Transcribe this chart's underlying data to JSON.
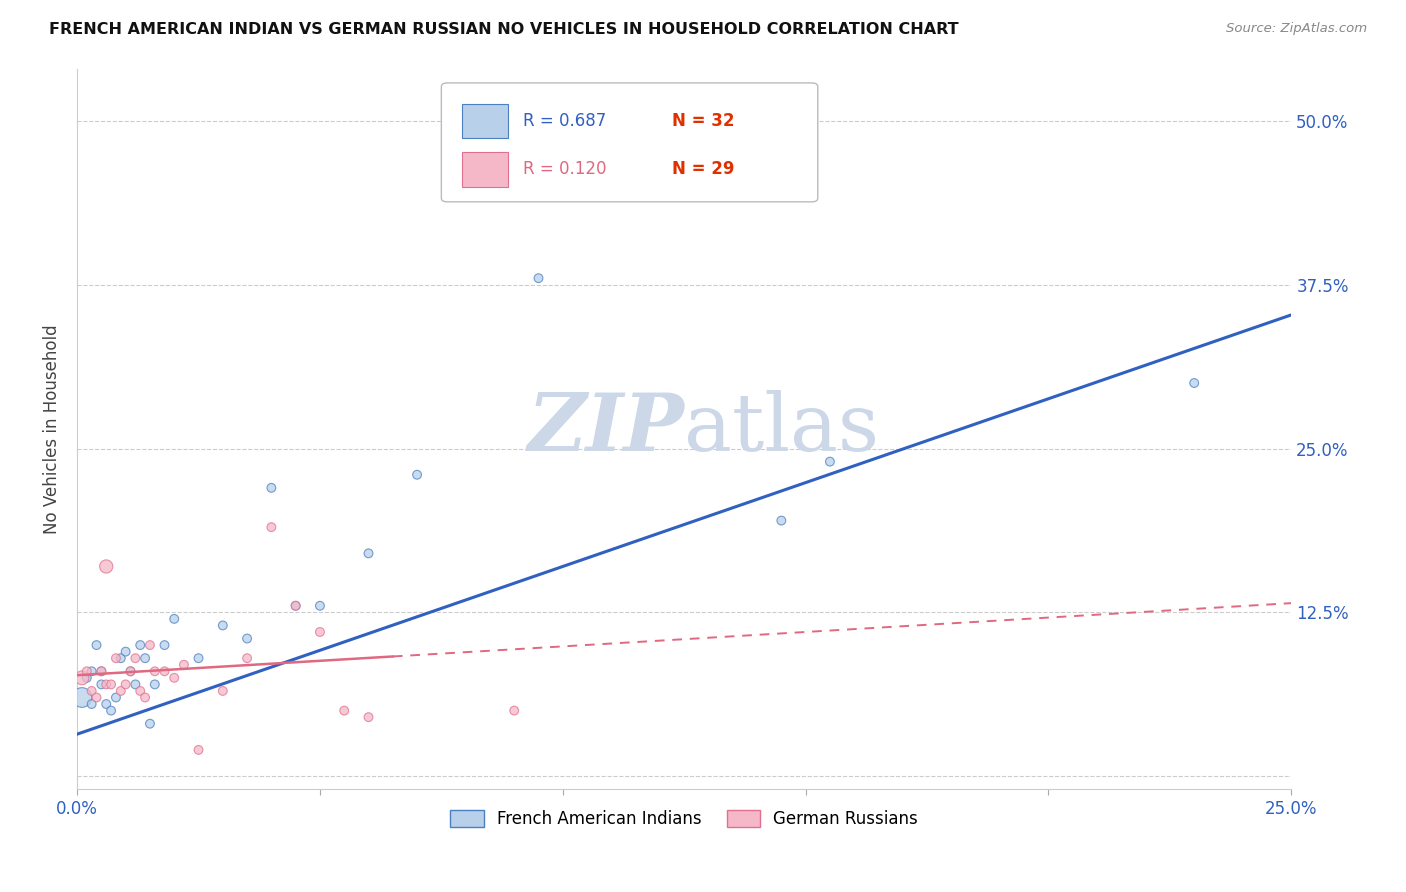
{
  "title": "FRENCH AMERICAN INDIAN VS GERMAN RUSSIAN NO VEHICLES IN HOUSEHOLD CORRELATION CHART",
  "source": "Source: ZipAtlas.com",
  "ylabel": "No Vehicles in Household",
  "xlim": [
    0.0,
    0.25
  ],
  "ylim": [
    -0.01,
    0.54
  ],
  "xticks": [
    0.0,
    0.05,
    0.1,
    0.15,
    0.2,
    0.25
  ],
  "xticklabels": [
    "0.0%",
    "",
    "",
    "",
    "",
    "25.0%"
  ],
  "yticks": [
    0.0,
    0.125,
    0.25,
    0.375,
    0.5
  ],
  "yticklabels_right": [
    "",
    "12.5%",
    "25.0%",
    "37.5%",
    "50.0%"
  ],
  "blue_R": "0.687",
  "blue_N": "32",
  "pink_R": "0.120",
  "pink_N": "29",
  "blue_fill_color": "#b8d0ea",
  "pink_fill_color": "#f5b8c8",
  "blue_edge_color": "#4a7fc0",
  "pink_edge_color": "#e07090",
  "blue_line_color": "#3060c0",
  "pink_line_color": "#e06880",
  "watermark_color": "#ccd8e8",
  "legend_R_blue_color": "#3060c0",
  "legend_R_pink_color": "#e06880",
  "legend_N_color": "#e03000",
  "blue_line_slope": 1.28,
  "blue_line_intercept": 0.032,
  "pink_line_slope": 0.22,
  "pink_line_intercept": 0.077,
  "blue_points_x": [
    0.001,
    0.002,
    0.003,
    0.003,
    0.004,
    0.005,
    0.005,
    0.006,
    0.007,
    0.008,
    0.009,
    0.01,
    0.011,
    0.012,
    0.013,
    0.014,
    0.015,
    0.016,
    0.018,
    0.02,
    0.025,
    0.03,
    0.035,
    0.04,
    0.045,
    0.05,
    0.06,
    0.07,
    0.095,
    0.145,
    0.155,
    0.23
  ],
  "blue_points_y": [
    0.06,
    0.075,
    0.055,
    0.08,
    0.1,
    0.07,
    0.08,
    0.055,
    0.05,
    0.06,
    0.09,
    0.095,
    0.08,
    0.07,
    0.1,
    0.09,
    0.04,
    0.07,
    0.1,
    0.12,
    0.09,
    0.115,
    0.105,
    0.22,
    0.13,
    0.13,
    0.17,
    0.23,
    0.38,
    0.195,
    0.24,
    0.3
  ],
  "blue_points_size": [
    200,
    40,
    40,
    40,
    40,
    40,
    40,
    40,
    40,
    40,
    40,
    40,
    40,
    40,
    40,
    40,
    40,
    40,
    40,
    40,
    40,
    40,
    40,
    40,
    40,
    40,
    40,
    40,
    40,
    40,
    40,
    40
  ],
  "pink_points_x": [
    0.001,
    0.002,
    0.003,
    0.004,
    0.005,
    0.006,
    0.006,
    0.007,
    0.008,
    0.009,
    0.01,
    0.011,
    0.012,
    0.013,
    0.014,
    0.015,
    0.016,
    0.018,
    0.02,
    0.022,
    0.025,
    0.03,
    0.035,
    0.04,
    0.045,
    0.05,
    0.055,
    0.06,
    0.09
  ],
  "pink_points_y": [
    0.075,
    0.08,
    0.065,
    0.06,
    0.08,
    0.07,
    0.16,
    0.07,
    0.09,
    0.065,
    0.07,
    0.08,
    0.09,
    0.065,
    0.06,
    0.1,
    0.08,
    0.08,
    0.075,
    0.085,
    0.02,
    0.065,
    0.09,
    0.19,
    0.13,
    0.11,
    0.05,
    0.045,
    0.05
  ],
  "pink_points_size": [
    100,
    40,
    40,
    40,
    40,
    40,
    90,
    40,
    40,
    40,
    40,
    40,
    40,
    40,
    40,
    40,
    40,
    40,
    40,
    40,
    40,
    40,
    40,
    40,
    40,
    40,
    40,
    40,
    40
  ]
}
